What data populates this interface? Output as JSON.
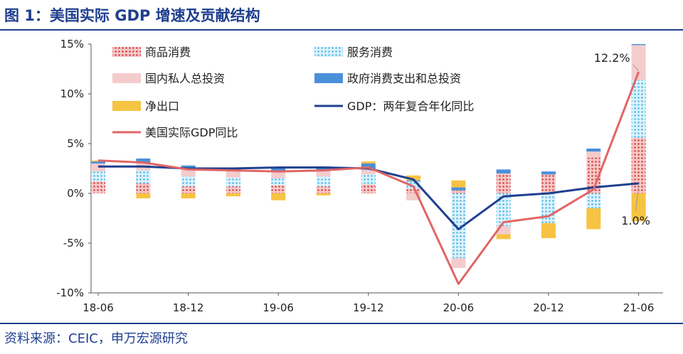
{
  "title": "图 1：美国实际 GDP 增速及贡献结构",
  "source": "资料来源：CEIC，申万宏源研究",
  "chart_data": {
    "type": "bar",
    "subtype": "stacked bar with lines",
    "quarters": [
      "18-06",
      "18-09",
      "18-12",
      "19-03",
      "19-06",
      "19-09",
      "19-12",
      "20-03",
      "20-06",
      "20-09",
      "20-12",
      "21-03",
      "21-06"
    ],
    "x_tick_labels": [
      "18-06",
      "18-12",
      "19-06",
      "19-12",
      "20-06",
      "20-12",
      "21-06"
    ],
    "y_tick_labels": [
      "15%",
      "10%",
      "5%",
      "0%",
      "-5%",
      "-10%"
    ],
    "ylim": [
      -10,
      15
    ],
    "y_unit": "%",
    "grid": false,
    "legend_position": "top-left",
    "series": [
      {
        "name": "商品消费",
        "type": "bar",
        "color": "#e06666",
        "pattern": "dots",
        "values": [
          1.2,
          1.0,
          0.7,
          0.7,
          0.8,
          0.7,
          0.9,
          0.5,
          0.3,
          2.0,
          1.9,
          3.6,
          5.6
        ]
      },
      {
        "name": "服务消费",
        "type": "bar",
        "color": "#5bc0eb",
        "pattern": "dots",
        "values": [
          1.0,
          1.3,
          1.0,
          0.9,
          0.7,
          1.0,
          1.0,
          0.7,
          -6.5,
          -3.3,
          -3.0,
          -1.5,
          5.8
        ]
      },
      {
        "name": "国内私人总投资",
        "type": "bar",
        "color": "#f4cccc",
        "pattern": "solid",
        "values": [
          0.8,
          0.8,
          0.8,
          0.7,
          0.7,
          0.6,
          0.5,
          -0.7,
          -1.0,
          -0.8,
          0.0,
          0.6,
          3.5
        ]
      },
      {
        "name": "政府消费支出和总投资",
        "type": "bar",
        "color": "#4a90d9",
        "pattern": "solid",
        "values": [
          0.2,
          0.4,
          0.3,
          0.3,
          0.4,
          0.4,
          0.6,
          0.1,
          0.3,
          0.4,
          0.3,
          0.3,
          0.1
        ]
      },
      {
        "name": "净出口",
        "type": "bar",
        "color": "#f6c342",
        "pattern": "solid",
        "values": [
          0.1,
          -0.5,
          -0.5,
          -0.3,
          -0.7,
          -0.2,
          0.2,
          0.5,
          0.7,
          -0.5,
          -1.5,
          -2.1,
          -2.8
        ]
      },
      {
        "name": "GDP：两年复合年化同比",
        "type": "line",
        "color": "#1f3f8f",
        "values": [
          2.7,
          2.7,
          2.5,
          2.5,
          2.6,
          2.6,
          2.5,
          1.4,
          -3.6,
          -0.3,
          0.0,
          0.6,
          1.0
        ]
      },
      {
        "name": "美国实际GDP同比",
        "type": "line",
        "color": "#e06666",
        "values": [
          3.3,
          3.1,
          2.4,
          2.3,
          2.2,
          2.3,
          2.6,
          0.7,
          -9.1,
          -2.9,
          -2.3,
          0.4,
          12.2
        ]
      }
    ],
    "annotations": [
      {
        "text": "12.2%",
        "series": "美国实际GDP同比",
        "quarter": "21-06"
      },
      {
        "text": "1.0%",
        "series": "GDP：两年复合年化同比",
        "quarter": "21-06"
      }
    ]
  }
}
